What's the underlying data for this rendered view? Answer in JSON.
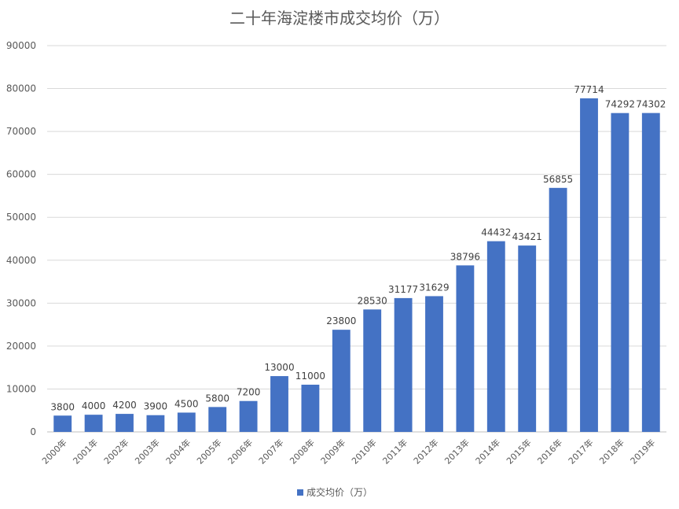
{
  "chart_data": {
    "type": "bar",
    "title": "二十年海淀楼市成交均价（万）",
    "xlabel": "",
    "ylabel": "",
    "categories": [
      "2000年",
      "2001年",
      "2002年",
      "2003年",
      "2004年",
      "2005年",
      "2006年",
      "2007年",
      "2008年",
      "2009年",
      "2010年",
      "2011年",
      "2012年",
      "2013年",
      "2014年",
      "2015年",
      "2016年",
      "2017年",
      "2018年",
      "2019年"
    ],
    "series": [
      {
        "name": "成交均价（万）",
        "values": [
          3800,
          4000,
          4200,
          3900,
          4500,
          5800,
          7200,
          13000,
          11000,
          23800,
          28530,
          31177,
          31629,
          38796,
          44432,
          43421,
          56855,
          77714,
          74292,
          74302
        ],
        "color": "#4472C4"
      }
    ],
    "ylim": [
      0,
      90000
    ],
    "yticks": [
      "0",
      "10000",
      "20000",
      "30000",
      "40000",
      "50000",
      "60000",
      "70000",
      "80000",
      "90000"
    ],
    "grid": true,
    "legend": "bottom",
    "data_labels": true
  }
}
